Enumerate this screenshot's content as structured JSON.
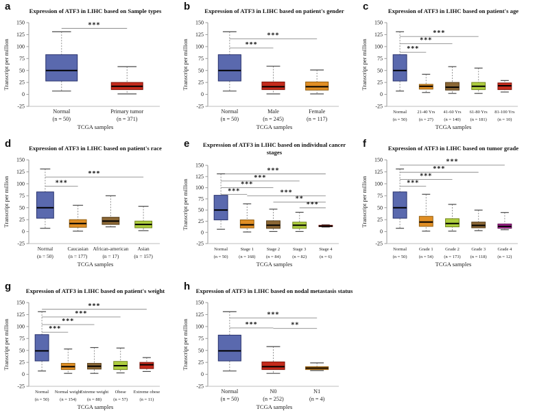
{
  "figure": {
    "background": "#ffffff",
    "source_label": "TCGA samples"
  },
  "palette": {
    "blue": {
      "fill": "#5A69AE",
      "stroke": "#27316B"
    },
    "red": {
      "fill": "#C42A1C",
      "stroke": "#7E150C"
    },
    "orange": {
      "fill": "#E08E24",
      "stroke": "#935E0F"
    },
    "brown": {
      "fill": "#8B6735",
      "stroke": "#59401D"
    },
    "yellowgreen": {
      "fill": "#AECE3F",
      "stroke": "#75871F"
    },
    "magenta": {
      "fill": "#A3278F",
      "stroke": "#611152"
    }
  },
  "chart_data": [
    {
      "panel": "a",
      "letter": "a",
      "type": "box",
      "title_lines": [
        "Expression of ATF3 in LIHC based on Sample types"
      ],
      "xlabel": "TCGA samples",
      "ylabel": "Transcript per million",
      "ylim": [
        -25,
        150
      ],
      "yticks": [
        150,
        125,
        100,
        75,
        50,
        25,
        0,
        -25
      ],
      "groups": [
        {
          "label": "Normal",
          "n": "(n = 50)",
          "color": "blue",
          "low": 7,
          "q1": 28,
          "median": 50,
          "q3": 83,
          "high": 131
        },
        {
          "label": "Primary tumor",
          "n": "(n = 371)",
          "color": "red",
          "low": 1,
          "q1": 10,
          "median": 17,
          "q3": 25,
          "high": 58
        }
      ],
      "brackets": [
        {
          "from": 0,
          "to": 1,
          "y": 138,
          "label": "***"
        }
      ]
    },
    {
      "panel": "b",
      "letter": "b",
      "type": "box",
      "title_lines": [
        "Expression of ATF3 in LIHC based on patient's gender"
      ],
      "xlabel": "TCGA samples",
      "ylabel": "Transcript per million",
      "ylim": [
        -25,
        150
      ],
      "yticks": [
        150,
        125,
        100,
        75,
        50,
        25,
        0,
        -25
      ],
      "groups": [
        {
          "label": "Normal",
          "n": "(n = 50)",
          "color": "blue",
          "low": 7,
          "q1": 28,
          "median": 50,
          "q3": 83,
          "high": 131
        },
        {
          "label": "Male",
          "n": "(n = 245)",
          "color": "red",
          "low": 1,
          "q1": 10,
          "median": 16,
          "q3": 26,
          "high": 59
        },
        {
          "label": "Female",
          "n": "(n = 117)",
          "color": "orange",
          "low": 1,
          "q1": 9,
          "median": 16,
          "q3": 26,
          "high": 51
        }
      ],
      "brackets": [
        {
          "from": 0,
          "to": 1,
          "y": 97,
          "label": "***"
        },
        {
          "from": 0,
          "to": 2,
          "y": 116,
          "label": "***"
        }
      ]
    },
    {
      "panel": "c",
      "letter": "c",
      "type": "box",
      "title_lines": [
        "Expression of ATF3 in LIHC based on patient's age"
      ],
      "xlabel": "TCGA samples",
      "ylabel": "Transcript per million",
      "ylim": [
        -25,
        150
      ],
      "yticks": [
        150,
        125,
        100,
        75,
        50,
        25,
        0,
        -25
      ],
      "groups": [
        {
          "label": "Normal",
          "n": "(n = 50)",
          "color": "blue",
          "low": 7,
          "q1": 28,
          "median": 50,
          "q3": 83,
          "high": 131
        },
        {
          "label": "21-40 Yrs",
          "n": "(n = 27)",
          "color": "orange",
          "low": 4,
          "q1": 11,
          "median": 17,
          "q3": 21,
          "high": 42
        },
        {
          "label": "41-60 Yrs",
          "n": "(n = 140)",
          "color": "brown",
          "low": 2,
          "q1": 9,
          "median": 15,
          "q3": 25,
          "high": 58
        },
        {
          "label": "61-80 Yrs",
          "n": "(n = 181)",
          "color": "yellowgreen",
          "low": 2,
          "q1": 10,
          "median": 17,
          "q3": 25,
          "high": 55
        },
        {
          "label": "81-100 Yrs",
          "n": "(n = 10)",
          "color": "red",
          "low": 5,
          "q1": 10,
          "median": 18,
          "q3": 24,
          "high": 29
        }
      ],
      "brackets": [
        {
          "from": 0,
          "to": 1,
          "y": 88,
          "label": "***"
        },
        {
          "from": 0,
          "to": 2,
          "y": 106,
          "label": "***"
        },
        {
          "from": 0,
          "to": 3,
          "y": 121,
          "label": "***"
        }
      ]
    },
    {
      "panel": "d",
      "letter": "d",
      "type": "box",
      "title_lines": [
        "Expression of ATF3 in LIHC based on patient's race"
      ],
      "xlabel": "TCGA samples",
      "ylabel": "Transcript per million",
      "ylim": [
        -25,
        150
      ],
      "yticks": [
        150,
        125,
        100,
        75,
        50,
        25,
        0,
        -25
      ],
      "groups": [
        {
          "label": "Normal",
          "n": "(n = 50)",
          "color": "blue",
          "low": 7,
          "q1": 28,
          "median": 50,
          "q3": 83,
          "high": 131
        },
        {
          "label": "Caucasian",
          "n": "(n = 177)",
          "color": "orange",
          "low": 1,
          "q1": 9,
          "median": 17,
          "q3": 25,
          "high": 55
        },
        {
          "label": "African-american",
          "n": "(n = 17)",
          "color": "brown",
          "low": 10,
          "q1": 15,
          "median": 22,
          "q3": 30,
          "high": 75
        },
        {
          "label": "Asian",
          "n": "(n = 157)",
          "color": "yellowgreen",
          "low": 2,
          "q1": 8,
          "median": 15,
          "q3": 22,
          "high": 53
        }
      ],
      "brackets": [
        {
          "from": 0,
          "to": 1,
          "y": 95,
          "label": "***"
        },
        {
          "from": 0,
          "to": 3,
          "y": 114,
          "label": "***"
        }
      ]
    },
    {
      "panel": "e",
      "letter": "e",
      "type": "box",
      "title_lines": [
        "Expression of ATF3 in LIHC based on individual cancer",
        "stages"
      ],
      "xlabel": "TCGA samples",
      "ylabel": "Transcript per million",
      "ylim": [
        -25,
        150
      ],
      "yticks": [
        150,
        125,
        100,
        75,
        50,
        25,
        0,
        -25
      ],
      "groups": [
        {
          "label": "Normal",
          "n": "(n = 50)",
          "color": "blue",
          "low": 7,
          "q1": 28,
          "median": 50,
          "q3": 83,
          "high": 131
        },
        {
          "label": "Stage 1",
          "n": "(n = 168)",
          "color": "orange",
          "low": 1,
          "q1": 10,
          "median": 17,
          "q3": 28,
          "high": 64
        },
        {
          "label": "Stage 2",
          "n": "(n = 84)",
          "color": "brown",
          "low": 2,
          "q1": 9,
          "median": 16,
          "q3": 26,
          "high": 52
        },
        {
          "label": "Stage 3",
          "n": "(n = 82)",
          "color": "yellowgreen",
          "low": 2,
          "q1": 9,
          "median": 16,
          "q3": 23,
          "high": 45
        },
        {
          "label": "Stage 4",
          "n": "(n = 6)",
          "color": "red",
          "low": 12,
          "q1": 13,
          "median": 14,
          "q3": 16,
          "high": 17
        }
      ],
      "brackets": [
        {
          "from": 0,
          "to": 1,
          "y": 85,
          "label": "***"
        },
        {
          "from": 1,
          "to": 4,
          "y": 82,
          "label": "***"
        },
        {
          "from": 0,
          "to": 2,
          "y": 100,
          "label": "***"
        },
        {
          "from": 0,
          "to": 3,
          "y": 115,
          "label": "***"
        },
        {
          "from": 0,
          "to": 4,
          "y": 131,
          "label": "***"
        },
        {
          "from": 2,
          "to": 4,
          "y": 68,
          "label": "**"
        },
        {
          "from": 3,
          "to": 4,
          "y": 55,
          "label": "***"
        }
      ]
    },
    {
      "panel": "f",
      "letter": "f",
      "type": "box",
      "title_lines": [
        "Expression of ATF3 in LIHC based on tumor grade"
      ],
      "xlabel": "TCGA samples",
      "ylabel": "Transcript per million",
      "ylim": [
        -25,
        150
      ],
      "yticks": [
        150,
        125,
        100,
        75,
        50,
        25,
        0,
        -25
      ],
      "groups": [
        {
          "label": "Normal",
          "n": "(n = 50)",
          "color": "blue",
          "low": 7,
          "q1": 28,
          "median": 50,
          "q3": 83,
          "high": 131
        },
        {
          "label": "Grade 1",
          "n": "(n = 54)",
          "color": "orange",
          "low": 1,
          "q1": 11,
          "median": 20,
          "q3": 32,
          "high": 78
        },
        {
          "label": "Grade 2",
          "n": "(n = 173)",
          "color": "yellowgreen",
          "low": 1,
          "q1": 10,
          "median": 17,
          "q3": 27,
          "high": 57
        },
        {
          "label": "Grade 3",
          "n": "(n = 118)",
          "color": "brown",
          "low": 2,
          "q1": 8,
          "median": 13,
          "q3": 20,
          "high": 45
        },
        {
          "label": "Grade 4",
          "n": "(n = 12)",
          "color": "magenta",
          "low": 4,
          "q1": 7,
          "median": 11,
          "q3": 16,
          "high": 40
        }
      ],
      "brackets": [
        {
          "from": 0,
          "to": 1,
          "y": 95,
          "label": "***"
        },
        {
          "from": 0,
          "to": 2,
          "y": 109,
          "label": "***"
        },
        {
          "from": 0,
          "to": 3,
          "y": 124,
          "label": "***"
        },
        {
          "from": 0,
          "to": 4,
          "y": 139,
          "label": "***"
        }
      ]
    },
    {
      "panel": "g",
      "letter": "g",
      "type": "box",
      "title_lines": [
        "Expression of ATF3 in LIHC based on patient's weight"
      ],
      "xlabel": "TCGA samples",
      "ylabel": "Transcript per million",
      "ylim": [
        -25,
        150
      ],
      "yticks": [
        150,
        125,
        100,
        75,
        50,
        25,
        0,
        -25
      ],
      "groups": [
        {
          "label": "Normal",
          "n": "(n = 50)",
          "color": "blue",
          "low": 7,
          "q1": 28,
          "median": 49,
          "q3": 83,
          "high": 131
        },
        {
          "label": "Normal weight",
          "n": "(n = 154)",
          "color": "orange",
          "low": 2,
          "q1": 10,
          "median": 16,
          "q3": 23,
          "high": 53
        },
        {
          "label": "Extreme weight",
          "n": "(n = 88)",
          "color": "brown",
          "low": 2,
          "q1": 11,
          "median": 17,
          "q3": 23,
          "high": 56
        },
        {
          "label": "Obese",
          "n": "(n = 57)",
          "color": "yellowgreen",
          "low": 3,
          "q1": 10,
          "median": 18,
          "q3": 27,
          "high": 55
        },
        {
          "label": "Extreme obese",
          "n": "(n = 11)",
          "color": "red",
          "low": 6,
          "q1": 12,
          "median": 20,
          "q3": 25,
          "high": 35
        }
      ],
      "brackets": [
        {
          "from": 0,
          "to": 1,
          "y": 88,
          "label": "***"
        },
        {
          "from": 0,
          "to": 2,
          "y": 104,
          "label": "***"
        },
        {
          "from": 0,
          "to": 3,
          "y": 120,
          "label": "***"
        },
        {
          "from": 0,
          "to": 4,
          "y": 136,
          "label": "***"
        }
      ]
    },
    {
      "panel": "h",
      "letter": "h",
      "type": "box",
      "title_lines": [
        "Expression of ATF3 in LIHC based on nodal metastasis status"
      ],
      "xlabel": "TCGA samples",
      "ylabel": "Transcript per million",
      "ylim": [
        -25,
        150
      ],
      "yticks": [
        150,
        125,
        100,
        75,
        50,
        25,
        0,
        -25
      ],
      "groups": [
        {
          "label": "Normal",
          "n": "(n = 50)",
          "color": "blue",
          "low": 7,
          "q1": 28,
          "median": 49,
          "q3": 82,
          "high": 131
        },
        {
          "label": "N0",
          "n": "(n = 252)",
          "color": "red",
          "low": 2,
          "q1": 10,
          "median": 16,
          "q3": 26,
          "high": 58
        },
        {
          "label": "N1",
          "n": "(n = 4)",
          "color": "orange",
          "low": 8,
          "q1": 10,
          "median": 13,
          "q3": 16,
          "high": 24
        }
      ],
      "brackets": [
        {
          "from": 0,
          "to": 1,
          "y": 97,
          "label": "***"
        },
        {
          "from": 1,
          "to": 2,
          "y": 96,
          "label": "**"
        },
        {
          "from": 0,
          "to": 2,
          "y": 118,
          "label": "***"
        }
      ]
    }
  ]
}
